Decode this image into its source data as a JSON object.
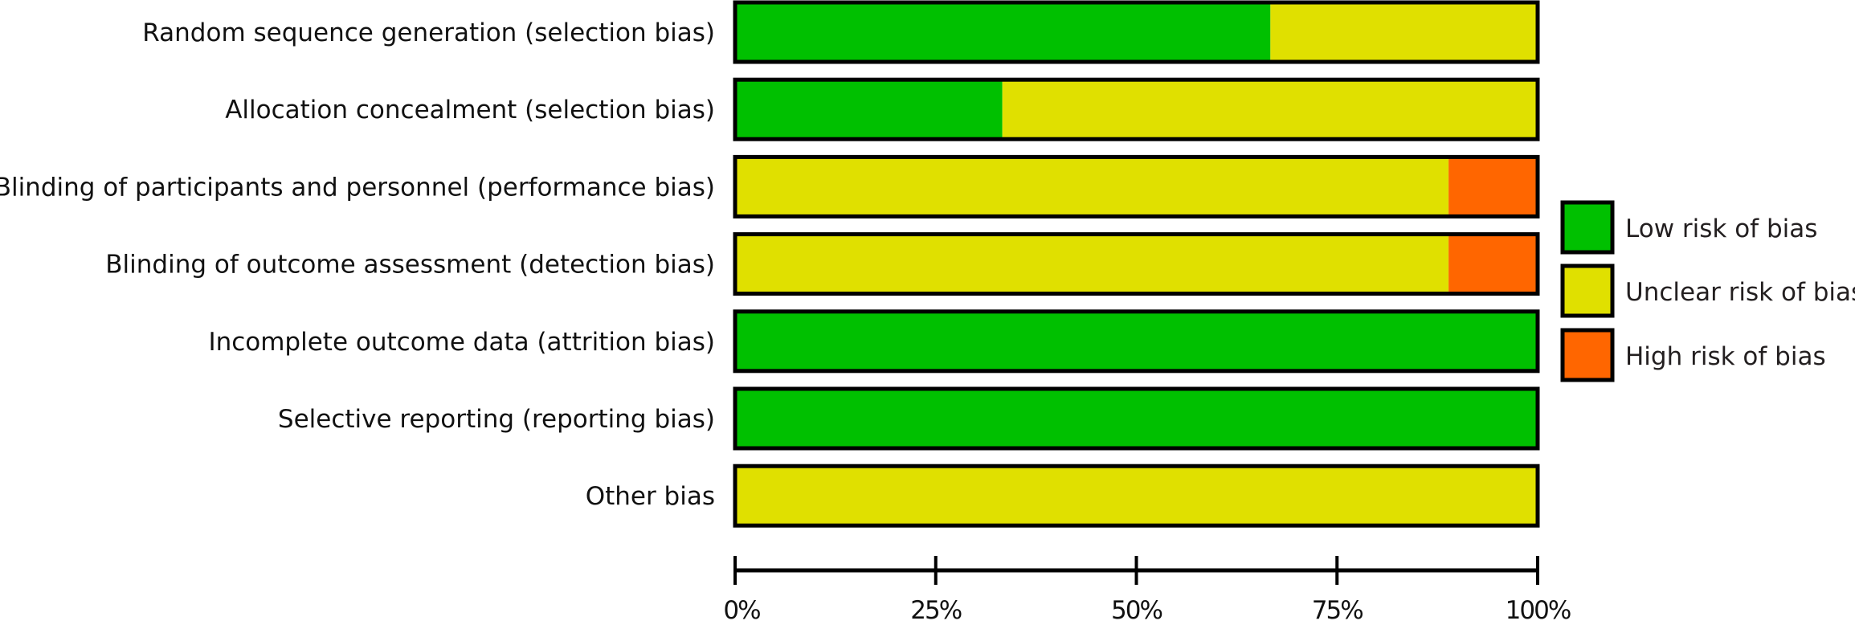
{
  "chart_data": {
    "type": "bar",
    "orientation": "horizontal",
    "stacked": true,
    "categories": [
      "Random sequence generation (selection bias)",
      "Allocation concealment (selection bias)",
      "Blinding of participants and personnel (performance bias)",
      "Blinding of outcome assessment (detection bias)",
      "Incomplete outcome data (attrition bias)",
      "Selective reporting (reporting bias)",
      "Other bias"
    ],
    "series": [
      {
        "name": "Low risk of bias",
        "color": "#00c000",
        "values": [
          66.7,
          33.3,
          0,
          0,
          100,
          100,
          0
        ]
      },
      {
        "name": "Unclear risk of bias",
        "color": "#e0e000",
        "values": [
          33.3,
          66.7,
          88.9,
          88.9,
          0,
          0,
          100
        ]
      },
      {
        "name": "High risk of bias",
        "color": "#ff6600",
        "values": [
          0,
          0,
          11.1,
          11.1,
          0,
          0,
          0
        ]
      }
    ],
    "xlim": [
      0,
      100
    ],
    "xticks": [
      0,
      25,
      50,
      75,
      100
    ],
    "xtick_labels": [
      "0%",
      "25%",
      "50%",
      "75%",
      "100%"
    ],
    "grid": false,
    "legend_position": "right"
  }
}
